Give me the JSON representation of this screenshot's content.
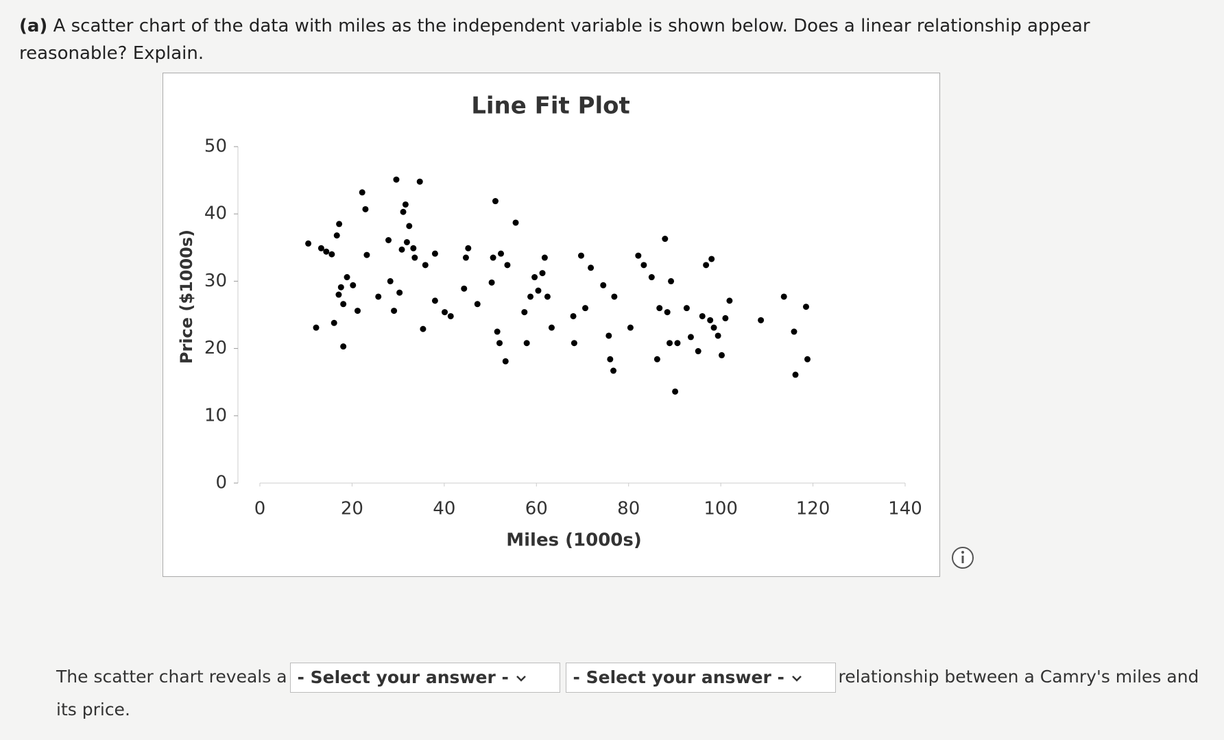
{
  "question": {
    "label": "(a)",
    "text": "A scatter chart of the data with miles as the independent variable is shown below. Does a linear relationship appear reasonable? Explain."
  },
  "chart_data": {
    "type": "scatter",
    "title": "Line Fit Plot",
    "x_label": "Miles (1000s)",
    "y_label": "Price ($1000s)",
    "color": "#000000",
    "x": [
      10.5,
      12.2,
      13.3,
      14.4,
      15.6,
      16.1,
      16.7,
      17.2,
      17.1,
      17.6,
      18.1,
      18.1,
      18.9,
      20.2,
      21.2,
      22.2,
      22.9,
      23.2,
      25.7,
      27.9,
      28.3,
      29.1,
      29.6,
      30.3,
      30.8,
      31.1,
      31.6,
      31.9,
      32.4,
      33.3,
      33.6,
      34.7,
      35.4,
      35.9,
      38.0,
      38.0,
      40.1,
      41.4,
      44.3,
      44.7,
      45.2,
      47.2,
      50.3,
      50.6,
      51.1,
      51.5,
      52.0,
      52.3,
      53.3,
      53.7,
      55.5,
      57.4,
      57.9,
      58.7,
      59.6,
      60.4,
      61.3,
      61.8,
      62.4,
      63.3,
      68.0,
      68.2,
      69.7,
      70.6,
      71.8,
      74.5,
      75.7,
      76.0,
      76.7,
      76.9,
      80.4,
      82.1,
      83.3,
      85.0,
      86.2,
      86.7,
      87.9,
      88.4,
      89.2,
      88.9,
      90.1,
      90.6,
      92.6,
      93.5,
      95.1,
      96.0,
      96.8,
      97.7,
      98.0,
      98.5,
      99.4,
      100.2,
      101.0,
      101.9,
      108.7,
      113.7,
      115.9,
      116.2,
      118.5,
      118.8
    ],
    "values": [
      35.6,
      23.1,
      34.9,
      34.4,
      34.0,
      23.8,
      36.8,
      38.5,
      28.0,
      29.1,
      20.3,
      26.6,
      30.6,
      29.4,
      25.6,
      43.2,
      40.7,
      33.9,
      27.7,
      36.1,
      30.0,
      25.6,
      45.1,
      28.3,
      34.7,
      40.3,
      41.4,
      35.8,
      38.2,
      34.9,
      33.5,
      44.8,
      22.9,
      32.4,
      34.1,
      27.1,
      25.4,
      24.8,
      28.9,
      33.5,
      34.9,
      26.6,
      29.8,
      33.5,
      41.9,
      22.5,
      20.8,
      34.1,
      18.1,
      32.4,
      38.7,
      25.4,
      20.8,
      27.7,
      30.6,
      28.6,
      31.2,
      33.5,
      27.7,
      23.1,
      24.8,
      20.8,
      33.8,
      26.0,
      32.0,
      29.4,
      21.9,
      18.4,
      16.7,
      27.7,
      23.1,
      33.8,
      32.4,
      30.6,
      18.4,
      26.0,
      36.3,
      25.4,
      30.0,
      20.8,
      13.6,
      20.8,
      26.0,
      21.7,
      19.6,
      24.8,
      32.4,
      24.2,
      33.3,
      23.1,
      21.9,
      19.0,
      24.5,
      27.1,
      24.2,
      27.7,
      22.5,
      16.1,
      26.2,
      18.4
    ],
    "xlim": [
      0,
      140
    ],
    "xticks": [
      0,
      20,
      40,
      60,
      80,
      100,
      120,
      140
    ],
    "ylim": [
      0,
      50
    ],
    "yticks": [
      0,
      10,
      20,
      30,
      40,
      50
    ],
    "grid": false
  },
  "answer": {
    "prefix": "The scatter chart reveals a",
    "dropdowns": [
      "- Select your answer -",
      "- Select your answer -"
    ],
    "suffix": "relationship between a Camry's miles and its price."
  }
}
